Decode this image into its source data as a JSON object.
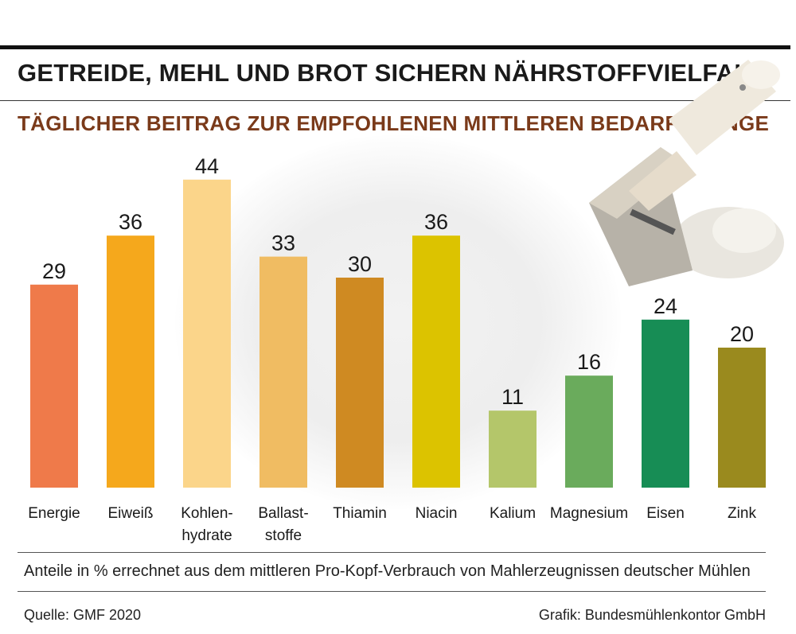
{
  "header": {
    "title": "GETREIDE, MEHL UND BROT SICHERN NÄHRSTOFFVIELFALT",
    "subtitle": "TÄGLICHER BEITRAG ZUR EMPFOHLENEN MITTLEREN BEDARFSMENGE"
  },
  "footer": {
    "note": "Anteile in % errechnet aus dem mittleren Pro-Kopf-Verbrauch von Mahlerzeugnissen deutscher Mühlen",
    "source": "Quelle: GMF 2020",
    "credit": "Grafik: Bundesmühlenkontor GmbH"
  },
  "chart_data": {
    "type": "bar",
    "title": "",
    "xlabel": "",
    "ylabel": "",
    "ylim": [
      0,
      50
    ],
    "grid": false,
    "categories": [
      [
        "Energie"
      ],
      [
        "Eiweiß"
      ],
      [
        "Kohlen-",
        "hydrate"
      ],
      [
        "Ballast-",
        "stoffe"
      ],
      [
        "Thiamin"
      ],
      [
        "Niacin"
      ],
      [
        "Kalium"
      ],
      [
        "Magnesium"
      ],
      [
        "Eisen"
      ],
      [
        "Zink"
      ]
    ],
    "values": [
      29,
      36,
      44,
      33,
      30,
      36,
      11,
      16,
      24,
      20
    ],
    "colors": [
      "#ef7a4a",
      "#f5a81c",
      "#fbd58a",
      "#f0bc62",
      "#cf8a22",
      "#dcc300",
      "#b4c66a",
      "#6aab5c",
      "#178d55",
      "#9a8a1e"
    ]
  }
}
